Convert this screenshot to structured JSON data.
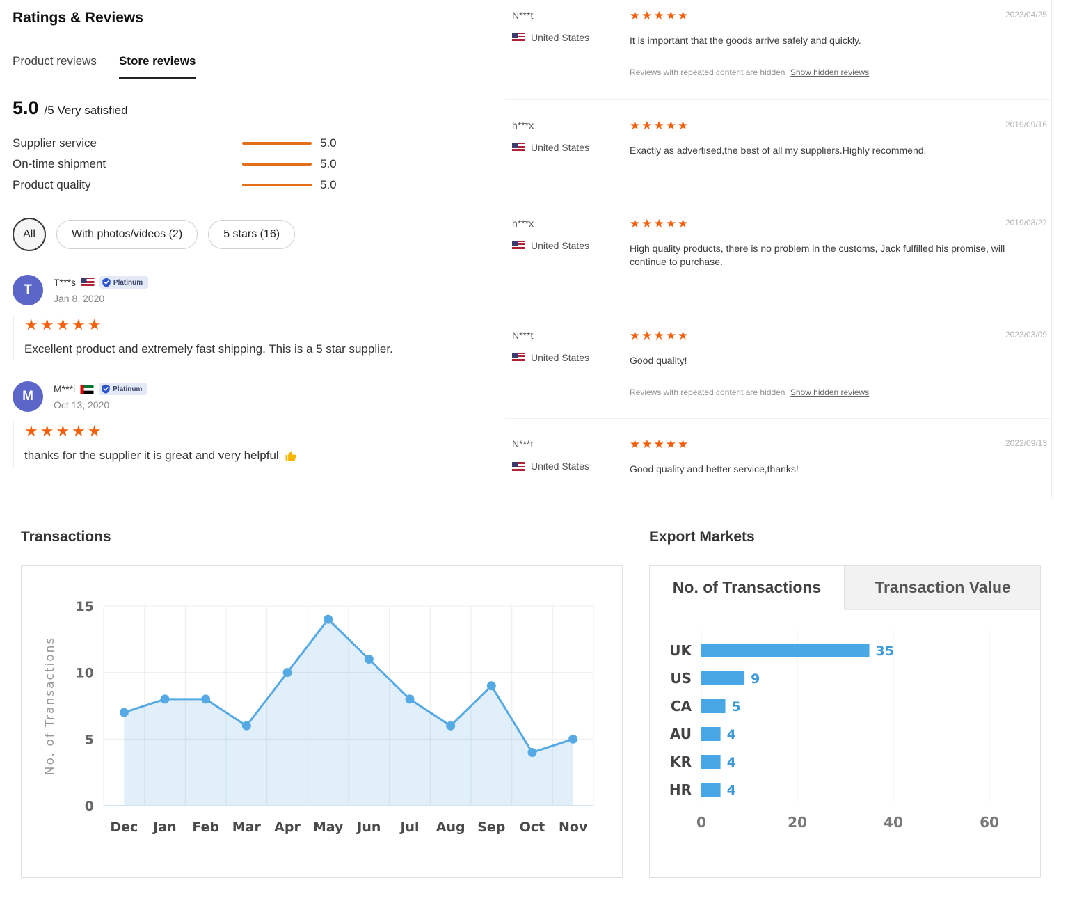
{
  "header": {
    "title": "Ratings & Reviews"
  },
  "tabs": {
    "product": "Product reviews",
    "store": "Store reviews"
  },
  "summary": {
    "score": "5.0",
    "rest": "/5 Very satisfied"
  },
  "metrics": [
    {
      "label": "Supplier service",
      "value": "5.0"
    },
    {
      "label": "On-time shipment",
      "value": "5.0"
    },
    {
      "label": "Product quality",
      "value": "5.0"
    }
  ],
  "filters": [
    {
      "label": "All",
      "active": true
    },
    {
      "label": "With photos/videos (2)",
      "active": false
    },
    {
      "label": "5 stars (16)",
      "active": false
    }
  ],
  "left_reviews": [
    {
      "avatar": "T",
      "name": "T***s",
      "flag": "us-flag",
      "badge": "Platinum",
      "date": "Jan 8, 2020",
      "stars": "★★★★★",
      "text": "Excellent product and extremely fast shipping. This is a 5 star supplier."
    },
    {
      "avatar": "M",
      "name": "M***i",
      "flag": "uae-flag",
      "badge": "Platinum",
      "date": "Oct 13, 2020",
      "stars": "★★★★★",
      "text": "thanks for the supplier it is great and very helpful",
      "emoji": "thumbs-up"
    }
  ],
  "store_reviews": [
    {
      "name": "N***t",
      "country": "United States",
      "flag": "us-flag",
      "stars": "★★★★★",
      "date": "2023/04/25",
      "text": "It is important that the goods arrive safely and quickly.",
      "hidden_note": "Reviews with repeated content are hidden",
      "hidden_link": "Show hidden reviews"
    },
    {
      "name": "h***x",
      "country": "United States",
      "flag": "us-flag",
      "stars": "★★★★★",
      "date": "2019/09/16",
      "text": "Exactly as advertised,the best of all my suppliers.Highly recommend."
    },
    {
      "name": "h***x",
      "country": "United States",
      "flag": "us-flag",
      "stars": "★★★★★",
      "date": "2019/08/22",
      "text": "High quality products, there is no problem in the customs, Jack fulfilled his promise, will continue to purchase."
    },
    {
      "name": "N***t",
      "country": "United States",
      "flag": "us-flag",
      "stars": "★★★★★",
      "date": "2023/03/09",
      "text": "Good quality!",
      "hidden_note": "Reviews with repeated content are hidden",
      "hidden_link": "Show hidden reviews"
    },
    {
      "name": "N***t",
      "country": "United States",
      "flag": "us-flag",
      "stars": "★★★★★",
      "date": "2022/09/13",
      "text": "Good quality and better service,thanks!"
    }
  ],
  "colors": {
    "star": "#f2600c",
    "metric_bar": "#e2701a",
    "avatar": "#5b66c8",
    "chart_line": "#55a9e4",
    "chart_bar": "#49a7e5",
    "tab_underline": "#222222"
  },
  "chart_data": [
    {
      "type": "area",
      "title": "Transactions",
      "ylabel": "No. of Transactions",
      "categories": [
        "Dec",
        "Jan",
        "Feb",
        "Mar",
        "Apr",
        "May",
        "Jun",
        "Jul",
        "Aug",
        "Sep",
        "Oct",
        "Nov"
      ],
      "values": [
        7,
        8,
        8,
        6,
        10,
        14,
        11,
        8,
        6,
        9,
        4,
        5
      ],
      "ylim": [
        0,
        15
      ],
      "yticks": [
        0,
        5,
        10,
        15
      ],
      "grid": true,
      "line_color": "#55a9e4",
      "fill_color": "#55a9e4",
      "fill_opacity": 0.18
    },
    {
      "type": "bar",
      "title": "Export Markets",
      "tabs": [
        "No. of Transactions",
        "Transaction Value"
      ],
      "active_tab": "No. of Transactions",
      "categories": [
        "UK",
        "US",
        "CA",
        "AU",
        "KR",
        "HR"
      ],
      "values": [
        35,
        9,
        5,
        4,
        4,
        4
      ],
      "xticks": [
        0,
        20,
        40,
        60
      ],
      "xlim": [
        0,
        63
      ],
      "grid": true,
      "bar_color": "#49a7e5",
      "value_label_color": "#3f9ad8"
    }
  ]
}
